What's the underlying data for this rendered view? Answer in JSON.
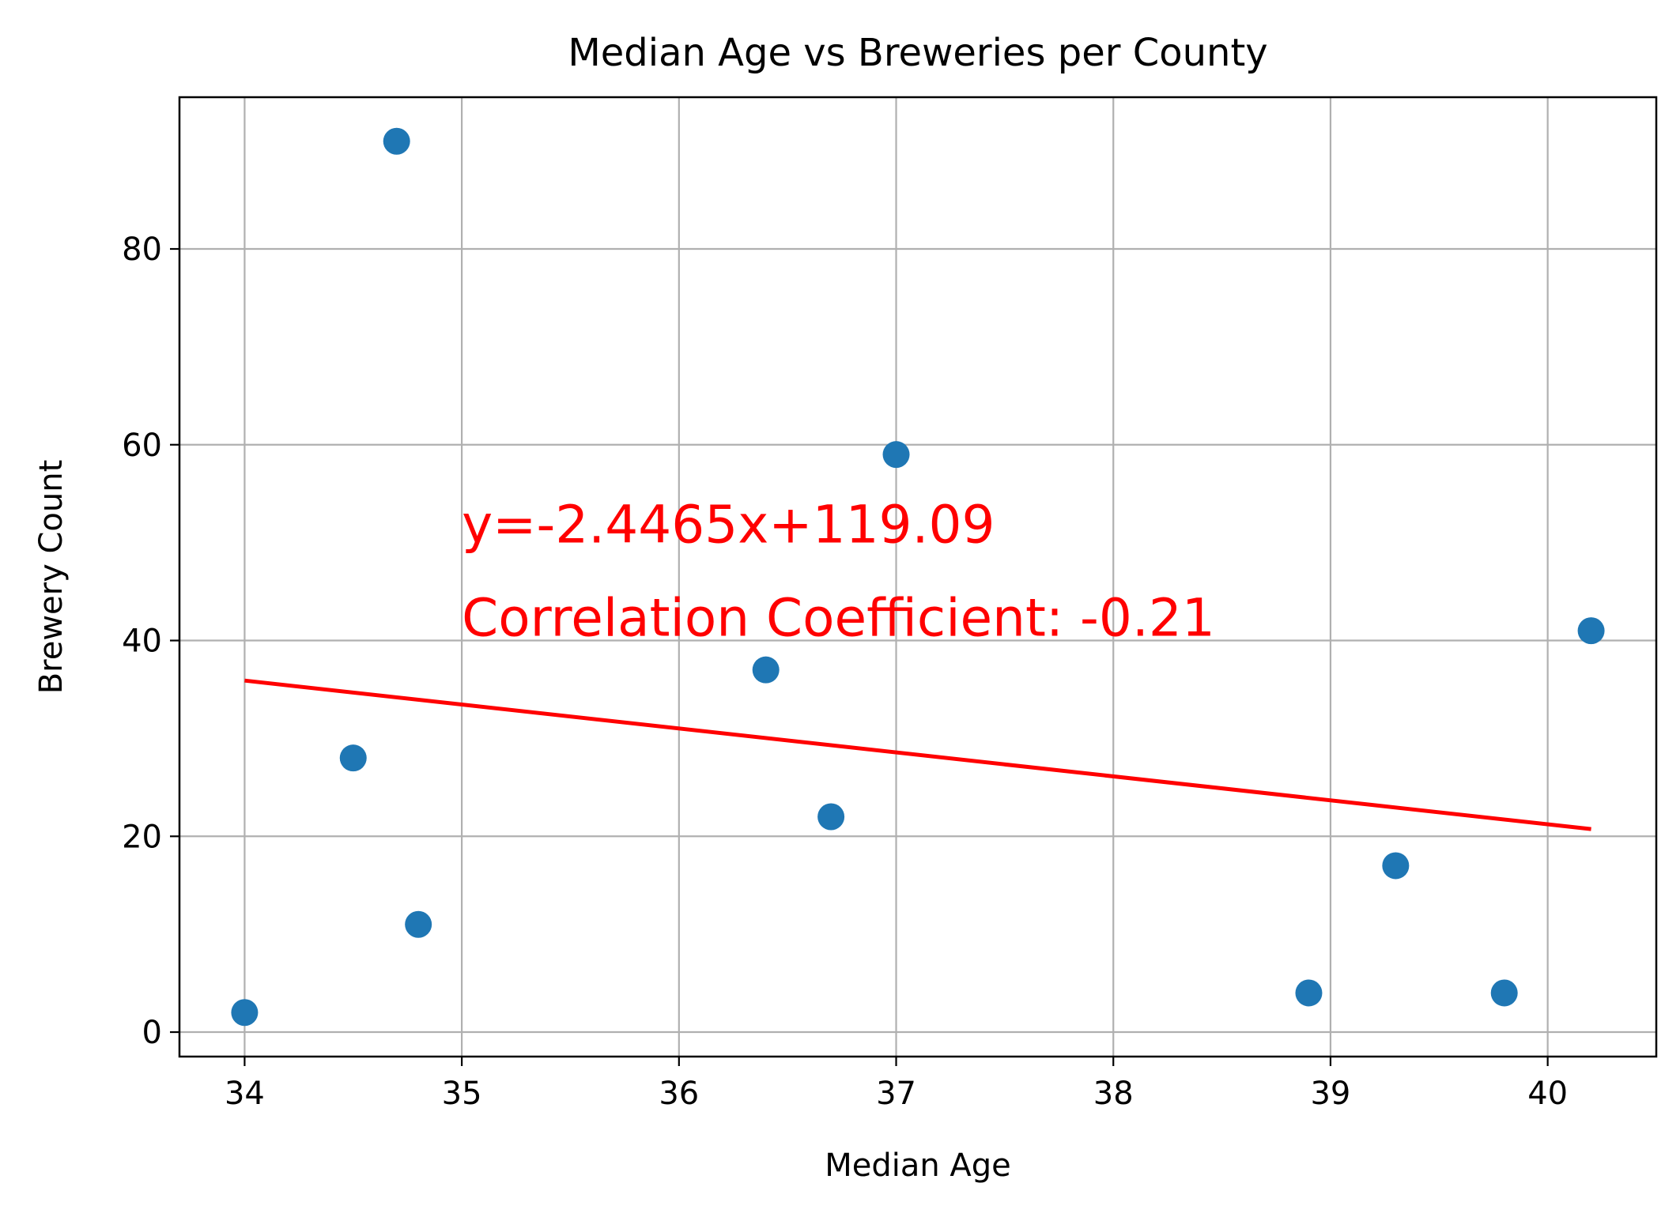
{
  "chart_data": {
    "type": "scatter",
    "title": "Median Age vs Breweries per County",
    "xlabel": "Median Age",
    "ylabel": "Brewery Count",
    "xlim": [
      33.7,
      40.5
    ],
    "ylim": [
      -2.5,
      95.5
    ],
    "xticks": [
      34,
      35,
      36,
      37,
      38,
      39,
      40
    ],
    "yticks": [
      0,
      20,
      40,
      60,
      80
    ],
    "grid": true,
    "points": {
      "x": [
        34.0,
        34.5,
        34.7,
        34.8,
        36.4,
        36.7,
        37.0,
        38.9,
        39.3,
        39.8,
        40.2
      ],
      "y": [
        2,
        28,
        91,
        11,
        37,
        22,
        59,
        4,
        17,
        4,
        41
      ]
    },
    "regression": {
      "slope": -2.4465,
      "intercept": 119.09,
      "x_range": [
        34.0,
        40.2
      ]
    },
    "annotations": [
      {
        "text": "y=-2.4465x+119.09",
        "x": 35.0,
        "y": 50
      },
      {
        "text": "Correlation Coefficient: -0.21",
        "x": 35.0,
        "y": 40.5
      }
    ],
    "colors": {
      "points": "#1f77b4",
      "regression": "#ff0000",
      "annotation": "#ff0000",
      "grid": "#b0b0b0",
      "axes": "#000000"
    }
  }
}
